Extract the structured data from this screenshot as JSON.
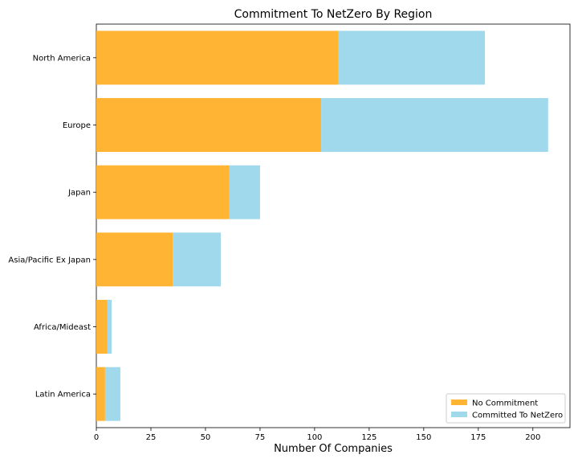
{
  "chart_data": {
    "type": "bar",
    "orientation": "horizontal",
    "stacked": true,
    "title": "Commitment To NetZero By Region",
    "xlabel": "Number Of Companies",
    "ylabel": "",
    "categories": [
      "North America",
      "Europe",
      "Japan",
      "Asia/Pacific Ex Japan",
      "Africa/Mideast",
      "Latin America"
    ],
    "series": [
      {
        "name": "No Commitment",
        "values": [
          111,
          103,
          61,
          35,
          5,
          4
        ],
        "color": "#ffb533"
      },
      {
        "name": "Committed To NetZero",
        "values": [
          67,
          104,
          14,
          22,
          2,
          7
        ],
        "color": "#a0d8ec"
      }
    ],
    "xlim": [
      0,
      217
    ],
    "xticks": [
      0,
      25,
      50,
      75,
      100,
      125,
      150,
      175,
      200
    ],
    "grid": false,
    "legend_position": "lower-right"
  }
}
